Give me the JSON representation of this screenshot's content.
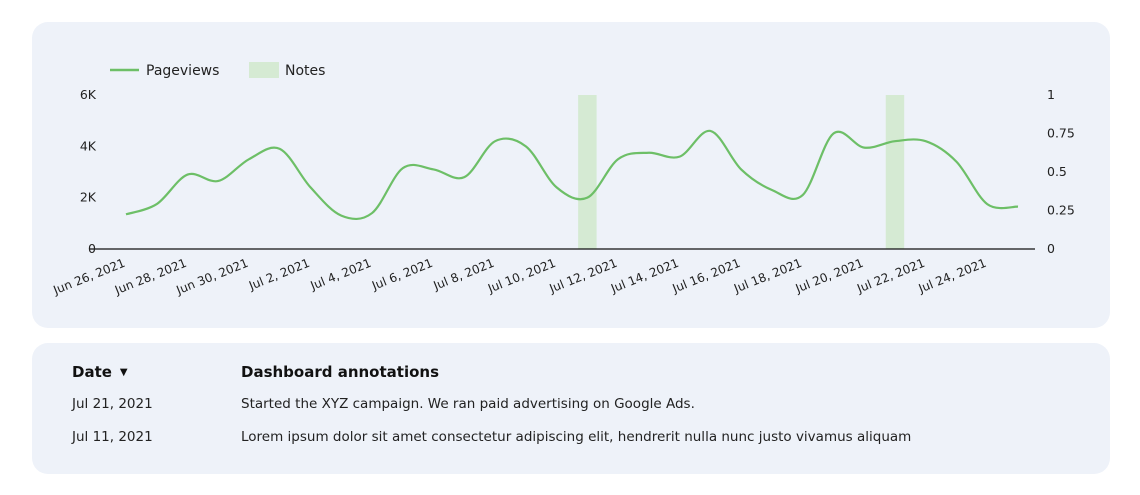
{
  "chart_data": {
    "type": "line",
    "x": [
      "2021-06-26",
      "2021-06-27",
      "2021-06-28",
      "2021-06-29",
      "2021-06-30",
      "2021-07-01",
      "2021-07-02",
      "2021-07-03",
      "2021-07-04",
      "2021-07-05",
      "2021-07-06",
      "2021-07-07",
      "2021-07-08",
      "2021-07-09",
      "2021-07-10",
      "2021-07-11",
      "2021-07-12",
      "2021-07-13",
      "2021-07-14",
      "2021-07-15",
      "2021-07-16",
      "2021-07-17",
      "2021-07-18",
      "2021-07-19",
      "2021-07-20",
      "2021-07-21",
      "2021-07-22",
      "2021-07-23",
      "2021-07-24",
      "2021-07-25"
    ],
    "series": [
      {
        "name": "Pageviews",
        "axis": "left",
        "values": [
          1350,
          1750,
          2900,
          2650,
          3500,
          3900,
          2400,
          1300,
          1400,
          3150,
          3100,
          2800,
          4200,
          4000,
          2400,
          2000,
          3500,
          3750,
          3600,
          4600,
          3100,
          2300,
          2100,
          4500,
          3950,
          4200,
          4200,
          3400,
          1750,
          1650
        ]
      }
    ],
    "notes": {
      "name": "Notes",
      "axis": "right",
      "dates": [
        "2021-07-11",
        "2021-07-21"
      ],
      "value": 1
    },
    "legend": [
      "Pageviews",
      "Notes"
    ],
    "legend_position": "top-left",
    "x_tick_labels": [
      "Jun 26, 2021",
      "Jun 28, 2021",
      "Jun 30, 2021",
      "Jul 2, 2021",
      "Jul 4, 2021",
      "Jul 6, 2021",
      "Jul 8, 2021",
      "Jul 10, 2021",
      "Jul 12, 2021",
      "Jul 14, 2021",
      "Jul 16, 2021",
      "Jul 18, 2021",
      "Jul 20, 2021",
      "Jul 22, 2021",
      "Jul 24, 2021"
    ],
    "y_left": {
      "ticks": [
        "0",
        "2K",
        "4K",
        "6K"
      ],
      "range": [
        0,
        6000
      ]
    },
    "y_right": {
      "ticks": [
        "0",
        "0.25",
        "0.5",
        "0.75",
        "1"
      ],
      "range": [
        0,
        1
      ]
    },
    "grid": false,
    "colors": {
      "line": "#6dbf67",
      "notes": "#d5ead3",
      "axis": "#111111"
    }
  },
  "table": {
    "headers": {
      "date": "Date",
      "annotations": "Dashboard annotations"
    },
    "sort_icon": "caret-down-icon",
    "rows": [
      {
        "date": "Jul 21, 2021",
        "note": "Started the XYZ campaign. We ran paid advertising on Google Ads."
      },
      {
        "date": "Jul 11, 2021",
        "note": "Lorem ipsum dolor sit amet consectetur adipiscing elit, hendrerit nulla nunc justo vivamus aliquam"
      }
    ]
  }
}
